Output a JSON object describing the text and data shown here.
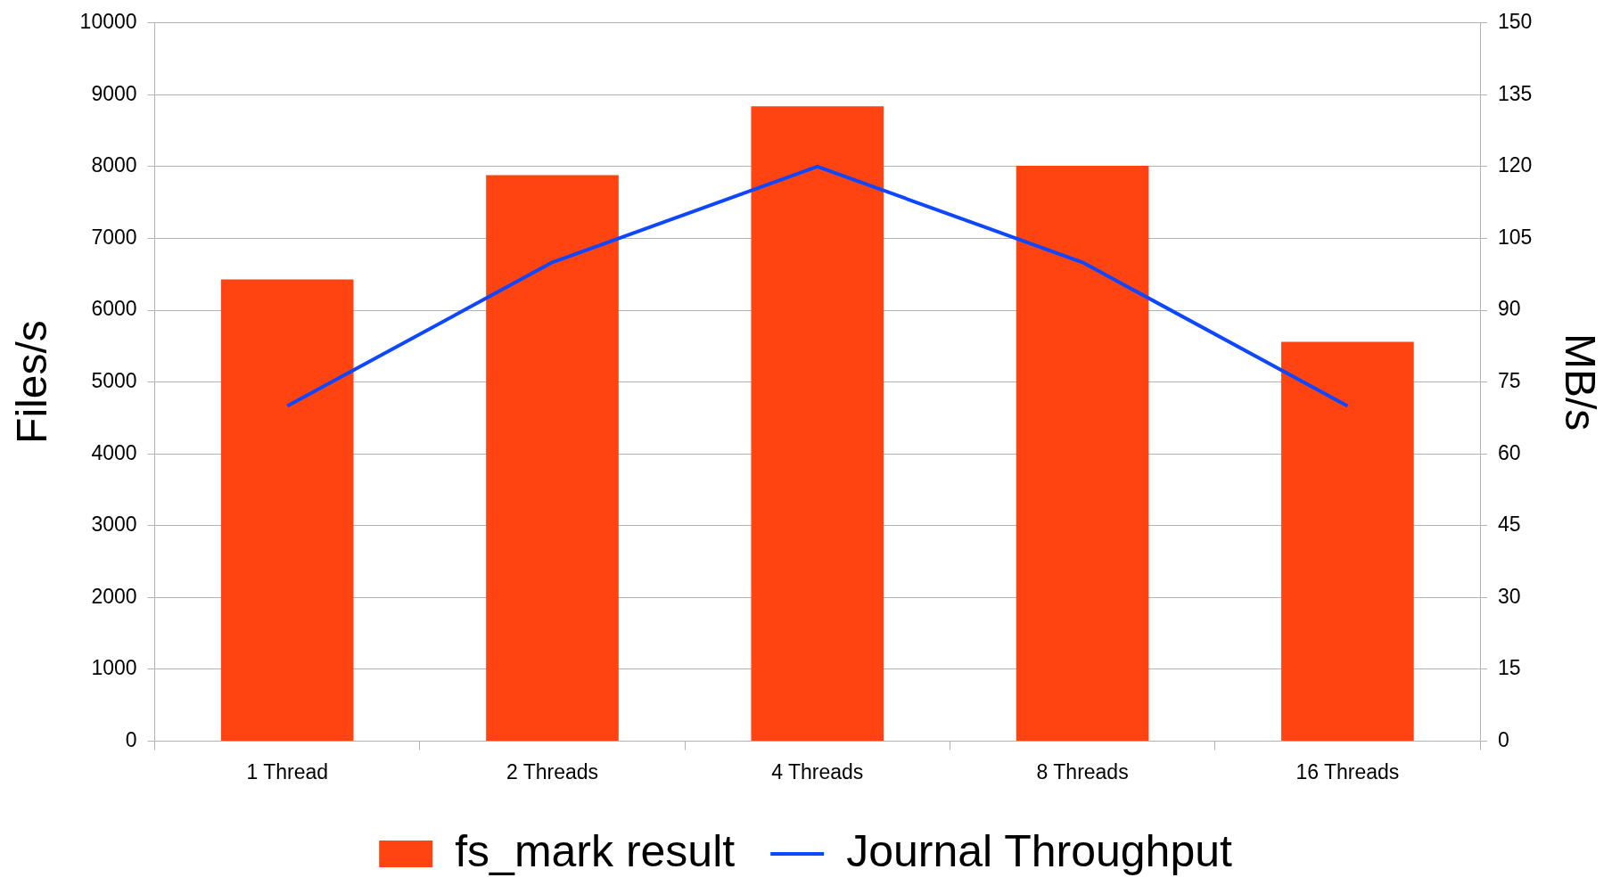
{
  "chart_data": {
    "type": "bar",
    "categories": [
      "1 Thread",
      "2 Threads",
      "4 Threads",
      "8 Threads",
      "16 Threads"
    ],
    "series": [
      {
        "name": "fs_mark result",
        "color": "#ff4411",
        "values": [
          6430,
          7880,
          8840,
          8010,
          5560
        ]
      },
      {
        "name": "Journal Throughput",
        "type": "line",
        "axis": "y2",
        "color": "#0d47ff",
        "values": [
          70,
          100,
          120,
          100,
          70
        ]
      }
    ],
    "ylabel": "Files/s",
    "y2label": "MB/s",
    "ylim": [
      0,
      10000
    ],
    "yticks": [
      0,
      1000,
      2000,
      3000,
      4000,
      5000,
      6000,
      7000,
      8000,
      9000,
      10000
    ],
    "y2lim": [
      0,
      150
    ],
    "y2ticks": [
      0,
      15,
      30,
      45,
      60,
      75,
      90,
      105,
      120,
      135,
      150
    ],
    "grid": "y",
    "legend": "bottom",
    "marker": "none",
    "line_style": "solid"
  }
}
